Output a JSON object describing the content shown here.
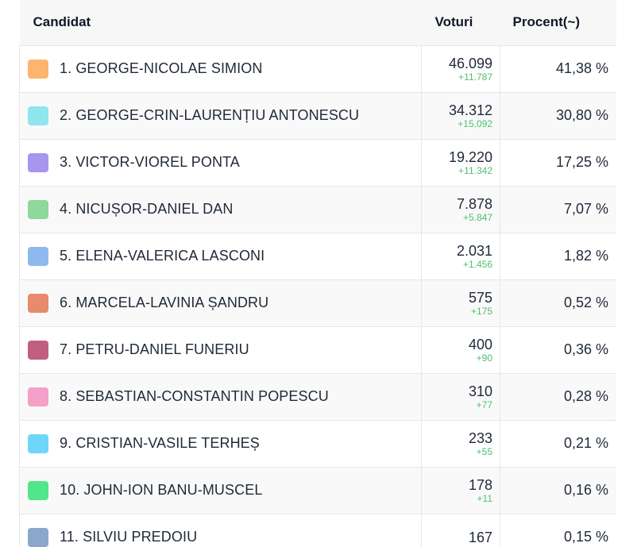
{
  "table": {
    "headers": {
      "candidate": "Candidat",
      "votes": "Voturi",
      "percent": "Procent(~)"
    },
    "rows": [
      {
        "name": "1. GEORGE-NICOLAE SIMION",
        "votes": "46.099",
        "delta": "+11.787",
        "percent": "41,38 %",
        "color": "#fdb46c"
      },
      {
        "name": "2. GEORGE-CRIN-LAURENȚIU ANTONESCU",
        "votes": "34.312",
        "delta": "+15.092",
        "percent": "30,80 %",
        "color": "#8fe6ee"
      },
      {
        "name": "3. VICTOR-VIOREL PONTA",
        "votes": "19.220",
        "delta": "+11.342",
        "percent": "17,25 %",
        "color": "#a795ef"
      },
      {
        "name": "4. NICUȘOR-DANIEL DAN",
        "votes": "7.878",
        "delta": "+5.847",
        "percent": "7,07 %",
        "color": "#8ed89a"
      },
      {
        "name": "5. ELENA-VALERICA LASCONI",
        "votes": "2.031",
        "delta": "+1.456",
        "percent": "1,82 %",
        "color": "#8eb9ee"
      },
      {
        "name": "6. MARCELA-LAVINIA ȘANDRU",
        "votes": "575",
        "delta": "+175",
        "percent": "0,52 %",
        "color": "#e88a6c"
      },
      {
        "name": "7. PETRU-DANIEL FUNERIU",
        "votes": "400",
        "delta": "+90",
        "percent": "0,36 %",
        "color": "#c0607e"
      },
      {
        "name": "8. SEBASTIAN-CONSTANTIN POPESCU",
        "votes": "310",
        "delta": "+77",
        "percent": "0,28 %",
        "color": "#f4a0c8"
      },
      {
        "name": "9. CRISTIAN-VASILE TERHEȘ",
        "votes": "233",
        "delta": "+55",
        "percent": "0,21 %",
        "color": "#6ed6f8"
      },
      {
        "name": "10. JOHN-ION BANU-MUSCEL",
        "votes": "178",
        "delta": "+11",
        "percent": "0,16 %",
        "color": "#52e68a"
      },
      {
        "name": "11. SILVIU PREDOIU",
        "votes": "167",
        "delta": "",
        "percent": "0,15 %",
        "color": "#8aa8cc"
      }
    ]
  }
}
